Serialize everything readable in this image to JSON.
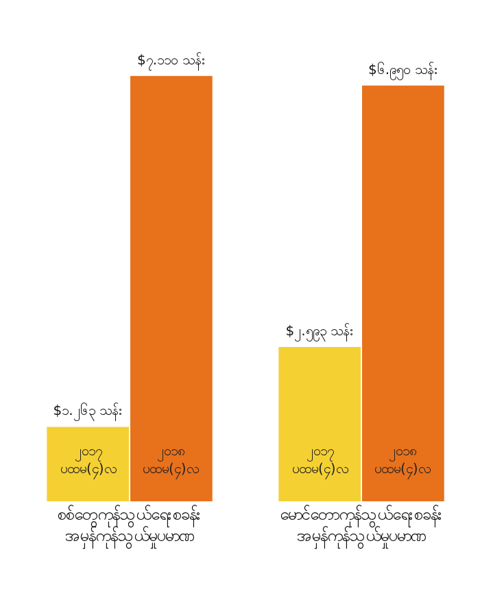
{
  "chart_data": {
    "type": "bar",
    "categories": [
      "စစ်တွေကုန်သွယ်ရေးစခန်း\nအမှန်ကုန်သွယ်မှုပမာဏ",
      "မောင်တောကုန်သွယ်ရေးစခန်း\nအမှန်ကုန်သွယ်မှုပမာဏ"
    ],
    "series": [
      {
        "name": "၂၀၁၇\nပထမ(၄)လ",
        "color": "#f5d033",
        "values": [
          1.263,
          2.593
        ],
        "value_labels": [
          "$၁.၂၆၃ သန်း",
          "$၂.၅၉၃ သန်း"
        ]
      },
      {
        "name": "၂၀၁၈\nပထမ(၄)လ",
        "color": "#e8711c",
        "values": [
          7.11,
          6.95
        ],
        "value_labels": [
          "$၇.၁၁၀ သန်း",
          "$၆.၉၅၀ သန်း"
        ]
      }
    ],
    "legend": false
  }
}
